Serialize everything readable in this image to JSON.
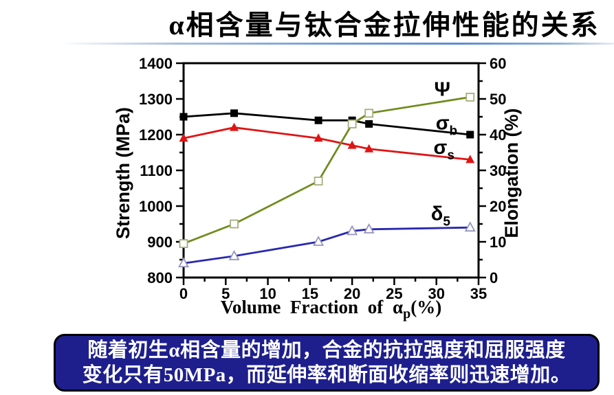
{
  "title": "α相含量与钛合金拉伸性能的关系",
  "caption": {
    "line1": "随着初生α相含量的增加，合金的抗拉强度和屈服强度",
    "line2": "变化只有50MPa，而延伸率和断面收缩率则迅速增加。",
    "background_color": "#1e1f8d",
    "text_color": "#ffffff"
  },
  "chart_data": {
    "type": "line",
    "title": "",
    "xlabel_main": "Volume Fraction of α",
    "xlabel_sub": "p",
    "xlabel_suffix": "(%)",
    "ylabel_left": "Strength (MPa)",
    "ylabel_right": "Elongation (%)",
    "xlim": [
      0,
      35
    ],
    "ylim_left": [
      800,
      1400
    ],
    "ylim_right": [
      0,
      60
    ],
    "xticks": [
      0,
      5,
      10,
      15,
      20,
      25,
      30,
      35
    ],
    "xticks_minor": [
      2.5,
      7.5,
      12.5,
      17.5,
      22.5,
      27.5,
      32.5
    ],
    "yticks_left": [
      800,
      900,
      1000,
      1100,
      1200,
      1300,
      1400
    ],
    "yticks_left_minor": [
      850,
      950,
      1050,
      1150,
      1250,
      1350
    ],
    "yticks_right": [
      0,
      10,
      20,
      30,
      40,
      50,
      60
    ],
    "yticks_right_minor": [
      5,
      15,
      25,
      35,
      45,
      55
    ],
    "grid": false,
    "legend_position": "inline-labels",
    "x": [
      0,
      6,
      16,
      20,
      22,
      34
    ],
    "series": [
      {
        "name": "sigma-b",
        "label_main": "σ",
        "label_sub": "b",
        "axis": "left",
        "color": "#000000",
        "marker": "square-filled",
        "values": [
          1250,
          1260,
          1240,
          1240,
          1230,
          1200
        ],
        "label_pos": {
          "x": 31.2,
          "y": 1232
        }
      },
      {
        "name": "sigma-s",
        "label_main": "σ",
        "label_sub": "s",
        "axis": "left",
        "color": "#df1414",
        "marker": "triangle-filled",
        "values": [
          1190,
          1220,
          1190,
          1170,
          1160,
          1130
        ],
        "label_pos": {
          "x": 30.9,
          "y": 1163
        }
      },
      {
        "name": "psi",
        "label_main": "Ψ",
        "label_sub": "",
        "axis": "right",
        "color": "#708c1e",
        "marker": "square-open",
        "marker_stroke": "#a6ad7d",
        "values": [
          9.5,
          15,
          27,
          43,
          46,
          50.5
        ],
        "label_pos": {
          "x": 30.7,
          "y": 52.6
        }
      },
      {
        "name": "delta-5",
        "label_main": "δ",
        "label_sub": "5",
        "axis": "right",
        "color": "#2828b0",
        "marker": "triangle-open",
        "marker_stroke": "#9595bd",
        "values": [
          4,
          6,
          10,
          13,
          13.5,
          14
        ],
        "label_pos": {
          "x": 30.5,
          "y": 17.8
        }
      }
    ]
  }
}
